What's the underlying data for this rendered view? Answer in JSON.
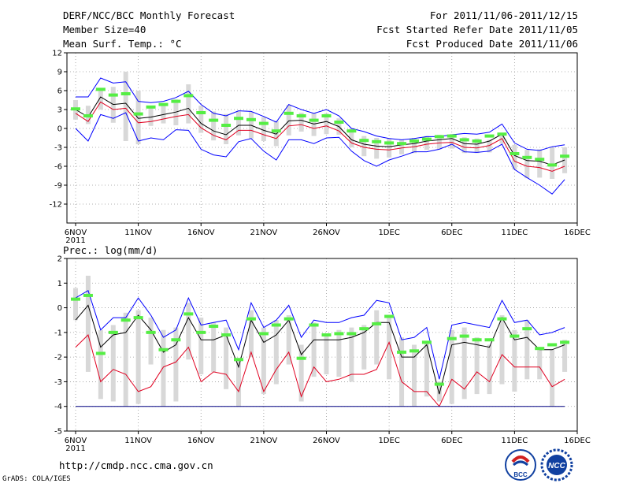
{
  "header": {
    "title": "DERF/NCC/BCC Monthly Forecast",
    "member_size": "Member Size=40",
    "variable": "Mean Surf. Temp.: °C",
    "period": "For 2011/11/06-2011/12/15",
    "started": "Fcst Started Refer Date 2011/11/05",
    "produced": "Fcst Produced Date 2011/11/06"
  },
  "footer": {
    "url": "http://cmdp.ncc.cma.gov.cn",
    "credit": "GrADS: COLA/IGES"
  },
  "logos": {
    "bcc": "BCC",
    "ncc": "NCC"
  },
  "colors": {
    "ensemble_max_min": "#0000ff",
    "ensemble_mean": "#000000",
    "lower_band": "#e00020",
    "climatology": "#55ee44",
    "spread_bar": "#d8d8d8",
    "zero_line": "#000080"
  },
  "chart_data": [
    {
      "type": "line",
      "title": "Mean Surf. Temp.: °C",
      "x_tick_labels": [
        "6NOV",
        "11NOV",
        "16NOV",
        "21NOV",
        "26NOV",
        "1DEC",
        "6DEC",
        "11DEC",
        "16DEC"
      ],
      "x_year_label": "2011",
      "ylim": [
        -15,
        12
      ],
      "y_ticks": [
        "12",
        "9",
        "6",
        "3",
        "0",
        "-3",
        "-6",
        "-9",
        "-12"
      ],
      "y_tick_values": [
        12,
        9,
        6,
        3,
        0,
        -3,
        -6,
        -9,
        -12
      ],
      "x_days": [
        0,
        1,
        2,
        3,
        4,
        5,
        6,
        7,
        8,
        9,
        10,
        11,
        12,
        13,
        14,
        15,
        16,
        17,
        18,
        19,
        20,
        21,
        22,
        23,
        24,
        25,
        26,
        27,
        28,
        29,
        30,
        31,
        32,
        33,
        34,
        35,
        36,
        37,
        38,
        39
      ],
      "series": [
        {
          "name": "ensemble max",
          "color": "#0000ff",
          "values": [
            5,
            5,
            8,
            7.2,
            7.4,
            4.3,
            4.1,
            4.3,
            4.9,
            5.9,
            3.8,
            2.4,
            2.0,
            2.8,
            2.7,
            1.9,
            1,
            3.8,
            3,
            2.4,
            3,
            2,
            0,
            -0.5,
            -1.2,
            -1.6,
            -1.8,
            -1.6,
            -1.3,
            -1.3,
            -1,
            -0.8,
            -0.9,
            -0.6,
            0.7,
            -2.3,
            -3.3,
            -3.5,
            -2.9,
            -2.6
          ]
        },
        {
          "name": "ensemble mean",
          "color": "#000000",
          "values": [
            3,
            1.8,
            5.0,
            3.8,
            4.0,
            1.6,
            1.8,
            2.2,
            2.6,
            3.2,
            0.8,
            -0.4,
            -1.0,
            0.5,
            0.5,
            -0.3,
            -0.9,
            1.2,
            1.3,
            0.7,
            1.1,
            0.3,
            -1.8,
            -2.5,
            -2.8,
            -2.9,
            -2.6,
            -2.4,
            -2,
            -1.8,
            -1.6,
            -2.4,
            -2.5,
            -2,
            -0.9,
            -4.3,
            -5.1,
            -5.2,
            -5.8,
            -5.0
          ]
        },
        {
          "name": "lower band",
          "color": "#e00020",
          "values": [
            2.4,
            1.1,
            4.2,
            3.0,
            3.2,
            0.9,
            1.1,
            1.5,
            1.9,
            2.2,
            0.1,
            -1.1,
            -1.8,
            -0.3,
            -0.3,
            -1.0,
            -1.6,
            0.4,
            0.6,
            0,
            0.4,
            -0.4,
            -2.3,
            -3.0,
            -3.3,
            -3.4,
            -3.1,
            -2.9,
            -2.5,
            -2.3,
            -2.2,
            -3.0,
            -3.1,
            -2.7,
            -1.6,
            -5.2,
            -6.0,
            -6.2,
            -6.8,
            -6.0
          ]
        },
        {
          "name": "ensemble min",
          "color": "#0000ff",
          "values": [
            0,
            -2,
            2.2,
            1.6,
            2.5,
            -2,
            -1.5,
            -1.8,
            -0.2,
            -0.3,
            -3.3,
            -4.2,
            -4.5,
            -2.1,
            -1.6,
            -3.6,
            -5,
            -1.8,
            -1.8,
            -2.4,
            -1.5,
            -1.4,
            -3.6,
            -5.1,
            -6,
            -5,
            -4.4,
            -3.7,
            -3.7,
            -3.3,
            -2.5,
            -3.7,
            -3.8,
            -3.6,
            -2.5,
            -6.5,
            -7.8,
            -9,
            -10.4,
            -8.1
          ]
        }
      ],
      "climatology_marks": [
        3.1,
        2.0,
        6.2,
        5.3,
        5.5,
        2.3,
        3.4,
        3.8,
        4.3,
        5.2,
        2.5,
        1.3,
        0.5,
        1.6,
        1.4,
        0.8,
        -0.4,
        2.4,
        2.0,
        1.3,
        2.0,
        1.0,
        -0.4,
        -1.9,
        -2.1,
        -2.3,
        -2.4,
        -2.0,
        -1.7,
        -1.3,
        -1.2,
        -1.8,
        -2,
        -1.2,
        -0.9,
        -4,
        -4.6,
        -4.9,
        -5.8,
        -4.4
      ],
      "spread_bars": [
        [
          1.4,
          4.5
        ],
        [
          0.7,
          3.6
        ],
        [
          3,
          6.2
        ],
        [
          0.9,
          6.6
        ],
        [
          -2,
          9
        ],
        [
          -2.5,
          6
        ],
        [
          0.4,
          3.5
        ],
        [
          0.8,
          4
        ],
        [
          0.5,
          4.6
        ],
        [
          0.8,
          7
        ],
        [
          -0.7,
          3.6
        ],
        [
          -1.9,
          2.7
        ],
        [
          -2.5,
          2.3
        ],
        [
          -1.1,
          2.7
        ],
        [
          -1.6,
          2.6
        ],
        [
          -2.0,
          1.8
        ],
        [
          -2.8,
          1.2
        ],
        [
          -1.1,
          3.7
        ],
        [
          -0.5,
          2.5
        ],
        [
          -1.2,
          2.4
        ],
        [
          -0.9,
          2.4
        ],
        [
          -1.0,
          1.6
        ],
        [
          -3,
          0
        ],
        [
          -4.4,
          -1.2
        ],
        [
          -4.8,
          -1.5
        ],
        [
          -4.6,
          -1.6
        ],
        [
          -4.1,
          -1.8
        ],
        [
          -3.9,
          -1.5
        ],
        [
          -3.4,
          -1.2
        ],
        [
          -3.3,
          -1.0
        ],
        [
          -3.2,
          -0.9
        ],
        [
          -3.9,
          -1.4
        ],
        [
          -3.9,
          -1.6
        ],
        [
          -3.8,
          -1.8
        ],
        [
          -2.4,
          -0.8
        ],
        [
          -6.5,
          -2.6
        ],
        [
          -7.9,
          -3.4
        ],
        [
          -7.8,
          -3.3
        ],
        [
          -8.0,
          -3.0
        ],
        [
          -7.1,
          -3.0
        ]
      ]
    },
    {
      "type": "line",
      "title": "Prec.: log(mm/d)",
      "x_tick_labels": [
        "6NOV",
        "11NOV",
        "16NOV",
        "21NOV",
        "26NOV",
        "1DEC",
        "6DEC",
        "11DEC",
        "16DEC"
      ],
      "x_year_label": "2011",
      "ylim": [
        -5,
        2
      ],
      "y_ticks": [
        "2",
        "1",
        "0",
        "-1",
        "-2",
        "-3",
        "-4",
        "-5"
      ],
      "y_tick_values": [
        2,
        1,
        0,
        -1,
        -2,
        -3,
        -4,
        -5
      ],
      "x_days": [
        0,
        1,
        2,
        3,
        4,
        5,
        6,
        7,
        8,
        9,
        10,
        11,
        12,
        13,
        14,
        15,
        16,
        17,
        18,
        19,
        20,
        21,
        22,
        23,
        24,
        25,
        26,
        27,
        28,
        29,
        30,
        31,
        32,
        33,
        34,
        35,
        36,
        37,
        38,
        39
      ],
      "series": [
        {
          "name": "ensemble max",
          "color": "#0000ff",
          "values": [
            0.4,
            0.7,
            -0.9,
            -0.4,
            -0.4,
            0.4,
            -0.3,
            -1.2,
            -0.9,
            0.4,
            -0.7,
            -0.6,
            -0.5,
            -1.7,
            0.2,
            -0.8,
            -0.5,
            0.1,
            -1.2,
            -0.5,
            -0.6,
            -0.6,
            -0.4,
            -0.3,
            0.3,
            0.2,
            -1.3,
            -1.2,
            -0.8,
            -2.9,
            -0.7,
            -0.6,
            -0.7,
            -0.8,
            0.3,
            -0.6,
            -0.5,
            -1.1,
            -1.0,
            -0.8
          ]
        },
        {
          "name": "ensemble mean",
          "color": "#000000",
          "values": [
            -0.5,
            0.1,
            -1.6,
            -1.1,
            -1.0,
            -0.3,
            -0.9,
            -1.8,
            -1.5,
            -0.4,
            -1.3,
            -1.3,
            -1.1,
            -2.4,
            -0.5,
            -1.4,
            -1.1,
            -0.5,
            -1.9,
            -1.3,
            -1.3,
            -1.3,
            -1.2,
            -1.0,
            -0.6,
            -0.6,
            -2.0,
            -2.0,
            -1.5,
            -3.5,
            -1.5,
            -1.4,
            -1.5,
            -1.6,
            -0.4,
            -1.3,
            -1.2,
            -1.7,
            -1.7,
            -1.5
          ]
        },
        {
          "name": "lower band",
          "color": "#e00020",
          "values": [
            -1.6,
            -1.1,
            -3.0,
            -2.5,
            -2.7,
            -3.4,
            -3.2,
            -2.4,
            -2.2,
            -1.6,
            -3.0,
            -2.6,
            -2.7,
            -3.4,
            -1.8,
            -3.4,
            -2.5,
            -1.8,
            -3.6,
            -2.4,
            -3.0,
            -2.9,
            -2.7,
            -2.7,
            -2.5,
            -1.4,
            -3.0,
            -3.4,
            -3.4,
            -4.0,
            -2.9,
            -3.3,
            -2.6,
            -3.0,
            -1.9,
            -2.4,
            -2.4,
            -2.4,
            -3.2,
            -2.9
          ]
        },
        {
          "name": "ensemble min",
          "color": "#000080",
          "values": [
            -4,
            -4,
            -4,
            -4,
            -4,
            -4,
            -4,
            -4,
            -4,
            -4,
            -4,
            -4,
            -4,
            -4,
            -4,
            -4,
            -4,
            -4,
            -4,
            -4,
            -4,
            -4,
            -4,
            -4,
            -4,
            -4,
            -4,
            -4,
            -4,
            -4,
            -4,
            -4,
            -4,
            -4,
            -4,
            -4,
            -4,
            -4,
            -4,
            -4
          ]
        }
      ],
      "climatology_marks": [
        0.35,
        0.5,
        -1.85,
        -1.0,
        -0.5,
        -0.4,
        -1.0,
        -1.7,
        -1.3,
        -0.25,
        -1.0,
        -0.75,
        -1.1,
        -2.1,
        -0.45,
        -1.05,
        -0.7,
        -0.45,
        -2.05,
        -0.7,
        -1.1,
        -1.05,
        -1.05,
        -0.85,
        -0.65,
        -0.35,
        -1.8,
        -1.75,
        -1.4,
        -3.1,
        -1.25,
        -1.15,
        -1.3,
        -1.3,
        -0.45,
        -1.15,
        -0.85,
        -1.65,
        -1.5,
        -1.4
      ],
      "spread_bars": [
        [
          -0.5,
          0.8
        ],
        [
          -2.6,
          1.3
        ],
        [
          -3.7,
          -0.9
        ],
        [
          -3.8,
          -0.7
        ],
        [
          -4,
          -0.2
        ],
        [
          -3.9,
          -0.1
        ],
        [
          -2.3,
          -0.4
        ],
        [
          -4,
          -0.9
        ],
        [
          -3.8,
          -0.8
        ],
        [
          -2.1,
          0.2
        ],
        [
          -2.7,
          -0.4
        ],
        [
          -2.6,
          -0.6
        ],
        [
          -3.3,
          -0.8
        ],
        [
          -4,
          -2.1
        ],
        [
          -2,
          -0.1
        ],
        [
          -3.5,
          -0.8
        ],
        [
          -3.1,
          -0.5
        ],
        [
          -2.3,
          -0.3
        ],
        [
          -3.8,
          -1.5
        ],
        [
          -2.8,
          -0.6
        ],
        [
          -2.7,
          -1.1
        ],
        [
          -2.8,
          -0.9
        ],
        [
          -3,
          -0.8
        ],
        [
          -2.5,
          -0.7
        ],
        [
          -2.3,
          -0.1
        ],
        [
          -2.9,
          -0.3
        ],
        [
          -4,
          -1.2
        ],
        [
          -4,
          -1.5
        ],
        [
          -3.6,
          -1.4
        ],
        [
          -3.8,
          -3.0
        ],
        [
          -3.9,
          -0.9
        ],
        [
          -3.7,
          -0.8
        ],
        [
          -3.5,
          -1.2
        ],
        [
          -3.5,
          -1.5
        ],
        [
          -3.1,
          -0.3
        ],
        [
          -3.4,
          -0.9
        ],
        [
          -2.9,
          -0.5
        ],
        [
          -2.9,
          -1.6
        ],
        [
          -4,
          -1.7
        ],
        [
          -2.6,
          -1.3
        ]
      ]
    }
  ]
}
